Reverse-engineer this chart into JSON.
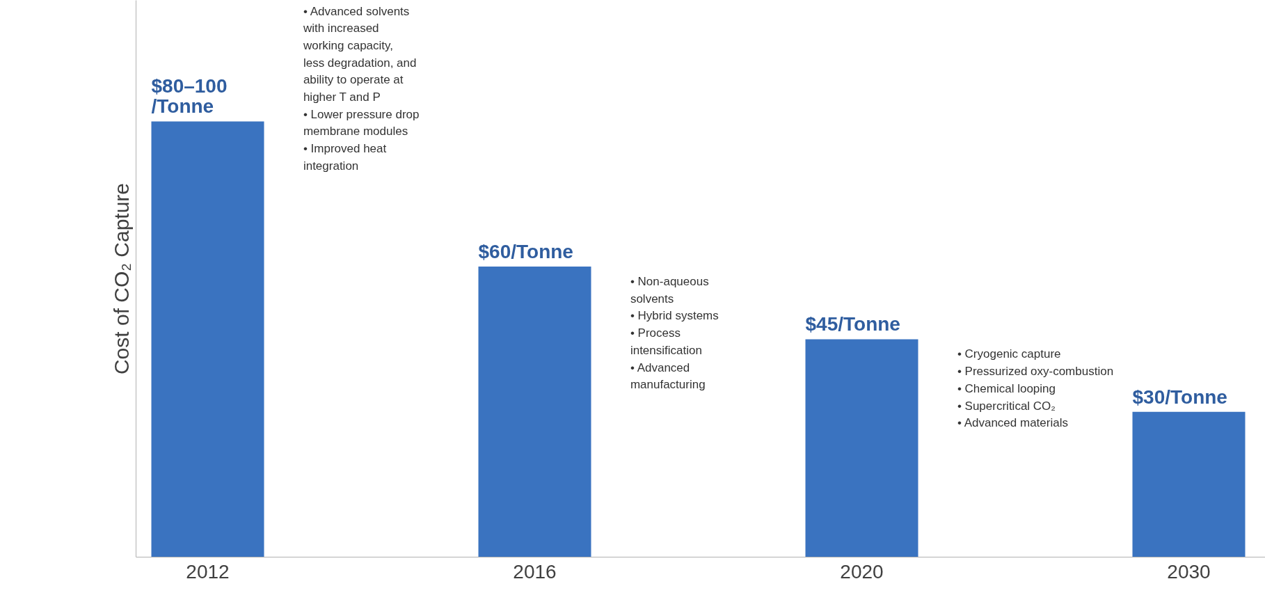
{
  "chart_data": {
    "type": "bar",
    "ylabel": "Cost of CO₂ Capture",
    "ylim": [
      0,
      115
    ],
    "categories": [
      "2012",
      "2016",
      "2020",
      "2030"
    ],
    "values": [
      90,
      60,
      45,
      30
    ],
    "value_labels": [
      "$80–100\n/Tonne",
      "$60/Tonne",
      "$45/Tonne",
      "$30/Tonne"
    ],
    "color": "#3a73c0",
    "grid": false,
    "tick_labels": "x",
    "annotations": [
      "• Advanced solvents\n   with increased\n   working capacity,\n   less degradation, and\n   ability to operate at\n   higher T and P\n• Lower pressure drop\n   membrane modules\n• Improved heat\n   integration",
      "• Non-aqueous\n   solvents\n• Hybrid systems\n• Process\n   intensification\n• Advanced\n   manufacturing",
      "• Cryogenic capture\n• Pressurized oxy-combustion\n• Chemical looping\n• Supercritical CO₂\n• Advanced materials"
    ]
  }
}
